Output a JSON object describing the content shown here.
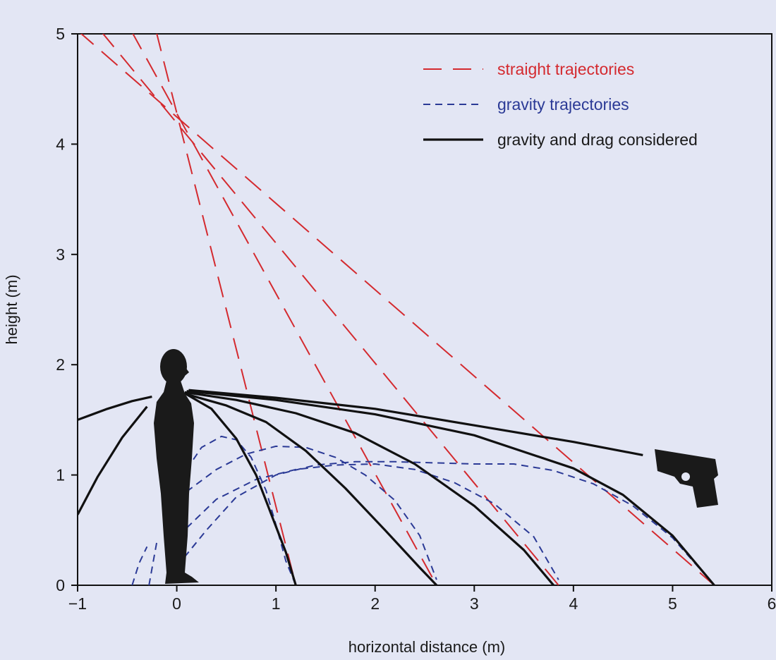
{
  "chart_data": {
    "type": "line",
    "xlabel": "horizontal distance (m)",
    "ylabel": "height (m)",
    "xlim": [
      -1,
      6
    ],
    "ylim": [
      0,
      5
    ],
    "x_ticks": [
      -1,
      0,
      1,
      2,
      3,
      4,
      5,
      6
    ],
    "x_tick_labels": [
      "−1",
      "0",
      "1",
      "2",
      "3",
      "4",
      "5",
      "6"
    ],
    "y_ticks": [
      0,
      1,
      2,
      3,
      4,
      5
    ],
    "y_tick_labels": [
      "0",
      "1",
      "2",
      "3",
      "4",
      "5"
    ],
    "grid": false,
    "legend_position": "top-right",
    "legend": [
      {
        "label": "straight trajectories",
        "style": "long-dash",
        "color": "#d42a2f"
      },
      {
        "label": "gravity trajectories",
        "style": "short-dash",
        "color": "#2b3a96"
      },
      {
        "label": "gravity and drag considered",
        "style": "solid",
        "color": "#111111"
      }
    ],
    "series": [
      {
        "style": "long-dash",
        "color": "#d42a2f",
        "points": [
          [
            -1.0,
            5.03
          ],
          [
            5.42,
            0.0
          ]
        ]
      },
      {
        "style": "long-dash",
        "color": "#d42a2f",
        "points": [
          [
            -0.77,
            5.03
          ],
          [
            3.85,
            0.0
          ]
        ]
      },
      {
        "style": "long-dash",
        "color": "#d42a2f",
        "points": [
          [
            -0.46,
            5.03
          ],
          [
            2.62,
            0.0
          ]
        ]
      },
      {
        "style": "long-dash",
        "color": "#d42a2f",
        "points": [
          [
            -0.21,
            5.03
          ],
          [
            1.2,
            0.0
          ]
        ]
      },
      {
        "style": "short-dash",
        "color": "#2b3a96",
        "points": [
          [
            0.0,
            0.17
          ],
          [
            0.3,
            0.5
          ],
          [
            0.6,
            0.8
          ],
          [
            1.0,
            1.0
          ],
          [
            1.4,
            1.09
          ],
          [
            1.8,
            1.12
          ],
          [
            2.2,
            1.12
          ],
          [
            2.6,
            1.11
          ],
          [
            3.0,
            1.1
          ],
          [
            3.4,
            1.1
          ],
          [
            3.8,
            1.04
          ],
          [
            4.2,
            0.92
          ],
          [
            4.6,
            0.72
          ],
          [
            5.0,
            0.43
          ],
          [
            5.42,
            0.0
          ]
        ]
      },
      {
        "style": "short-dash",
        "color": "#2b3a96",
        "points": [
          [
            0.1,
            0.52
          ],
          [
            0.4,
            0.78
          ],
          [
            0.8,
            0.96
          ],
          [
            1.2,
            1.05
          ],
          [
            1.6,
            1.09
          ],
          [
            2.0,
            1.1
          ],
          [
            2.4,
            1.05
          ],
          [
            2.8,
            0.93
          ],
          [
            3.2,
            0.74
          ],
          [
            3.6,
            0.44
          ],
          [
            3.85,
            0.05
          ]
        ]
      },
      {
        "style": "short-dash",
        "color": "#2b3a96",
        "points": [
          [
            0.1,
            0.85
          ],
          [
            0.4,
            1.05
          ],
          [
            0.7,
            1.19
          ],
          [
            1.0,
            1.26
          ],
          [
            1.3,
            1.25
          ],
          [
            1.6,
            1.16
          ],
          [
            1.9,
            1.0
          ],
          [
            2.2,
            0.77
          ],
          [
            2.45,
            0.45
          ],
          [
            2.62,
            0.05
          ]
        ]
      },
      {
        "style": "short-dash",
        "color": "#2b3a96",
        "points": [
          [
            0.1,
            1.05
          ],
          [
            0.25,
            1.25
          ],
          [
            0.45,
            1.35
          ],
          [
            0.6,
            1.32
          ],
          [
            0.75,
            1.16
          ],
          [
            0.9,
            0.86
          ],
          [
            1.0,
            0.55
          ],
          [
            1.1,
            0.22
          ],
          [
            1.2,
            0.0
          ]
        ]
      },
      {
        "style": "short-dash",
        "color": "#2b3a96",
        "points": [
          [
            -0.45,
            0.0
          ],
          [
            -0.38,
            0.2
          ],
          [
            -0.3,
            0.35
          ]
        ]
      },
      {
        "style": "short-dash",
        "color": "#2b3a96",
        "points": [
          [
            -0.28,
            0.0
          ],
          [
            -0.24,
            0.2
          ],
          [
            -0.2,
            0.4
          ]
        ]
      },
      {
        "style": "solid",
        "color": "#111111",
        "points": [
          [
            0.12,
            1.77
          ],
          [
            1.0,
            1.7
          ],
          [
            2.0,
            1.6
          ],
          [
            3.0,
            1.45
          ],
          [
            4.0,
            1.3
          ],
          [
            4.7,
            1.18
          ]
        ]
      },
      {
        "style": "solid",
        "color": "#111111",
        "points": [
          [
            0.1,
            1.76
          ],
          [
            1.0,
            1.68
          ],
          [
            2.0,
            1.55
          ],
          [
            3.0,
            1.36
          ],
          [
            4.0,
            1.06
          ],
          [
            4.5,
            0.82
          ],
          [
            5.0,
            0.45
          ],
          [
            5.42,
            0.0
          ]
        ]
      },
      {
        "style": "solid",
        "color": "#111111",
        "points": [
          [
            0.08,
            1.75
          ],
          [
            0.6,
            1.68
          ],
          [
            1.2,
            1.56
          ],
          [
            1.8,
            1.38
          ],
          [
            2.4,
            1.1
          ],
          [
            3.0,
            0.72
          ],
          [
            3.5,
            0.32
          ],
          [
            3.8,
            0.0
          ]
        ]
      },
      {
        "style": "solid",
        "color": "#111111",
        "points": [
          [
            0.07,
            1.74
          ],
          [
            0.5,
            1.63
          ],
          [
            0.9,
            1.48
          ],
          [
            1.3,
            1.22
          ],
          [
            1.7,
            0.88
          ],
          [
            2.1,
            0.5
          ],
          [
            2.45,
            0.16
          ],
          [
            2.62,
            0.0
          ]
        ]
      },
      {
        "style": "solid",
        "color": "#111111",
        "points": [
          [
            0.1,
            1.73
          ],
          [
            0.35,
            1.6
          ],
          [
            0.6,
            1.33
          ],
          [
            0.8,
            1.0
          ],
          [
            0.95,
            0.65
          ],
          [
            1.1,
            0.3
          ],
          [
            1.2,
            0.0
          ]
        ]
      },
      {
        "style": "solid",
        "color": "#111111",
        "points": [
          [
            -1.0,
            1.5
          ],
          [
            -0.7,
            1.6
          ],
          [
            -0.45,
            1.67
          ],
          [
            -0.25,
            1.71
          ]
        ]
      },
      {
        "style": "solid",
        "color": "#111111",
        "points": [
          [
            -1.0,
            0.64
          ],
          [
            -0.8,
            0.98
          ],
          [
            -0.55,
            1.34
          ],
          [
            -0.3,
            1.62
          ]
        ]
      }
    ]
  }
}
